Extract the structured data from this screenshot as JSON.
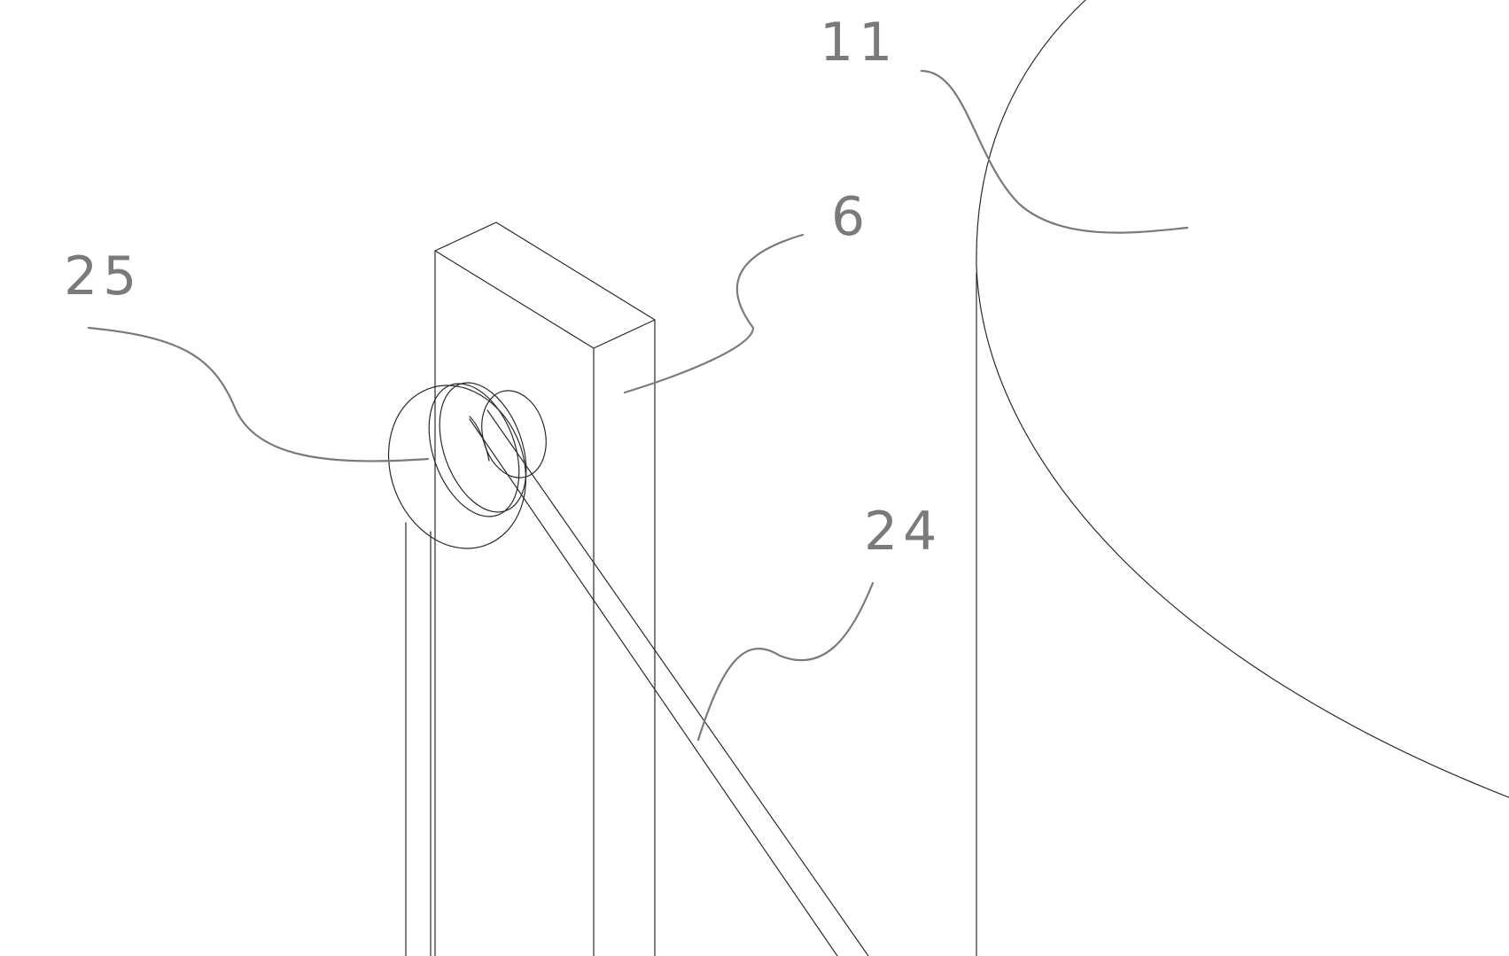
{
  "labels": {
    "part_11": "11",
    "part_6": "6",
    "part_25": "25",
    "part_24": "24"
  },
  "colors": {
    "outline": "#2a2a2a",
    "leader": "#7a7a7a",
    "background": "#ffffff"
  }
}
